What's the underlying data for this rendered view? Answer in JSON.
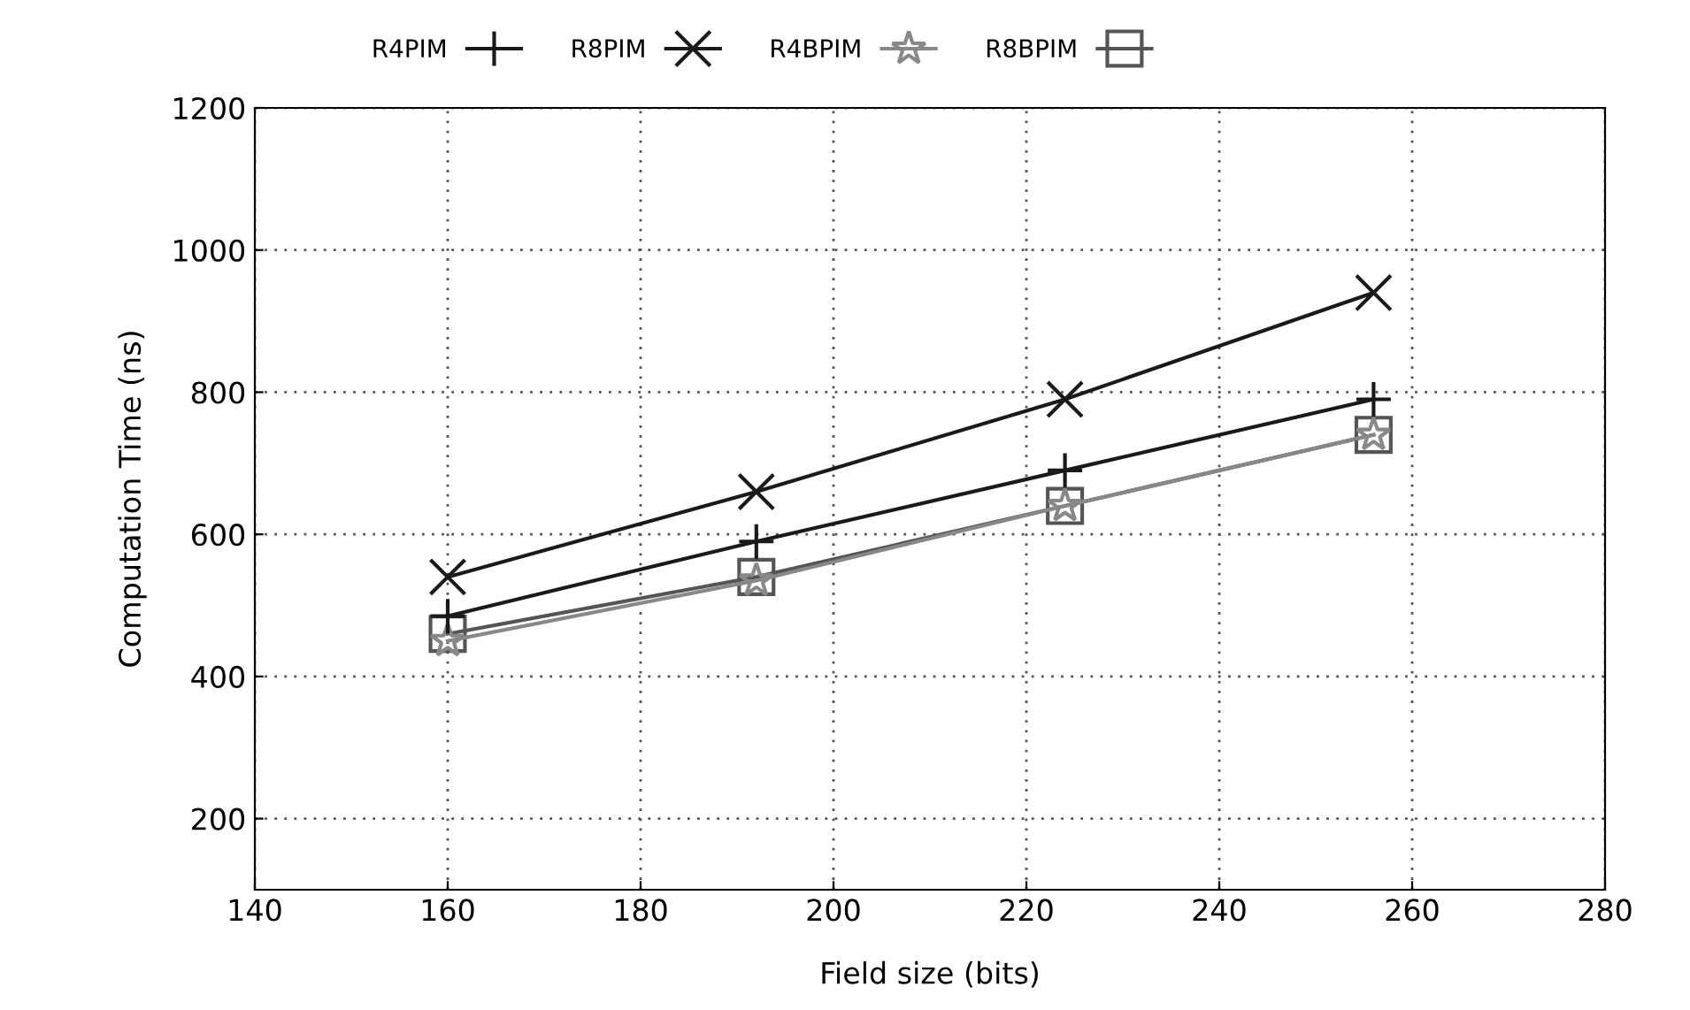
{
  "chart_data": {
    "type": "line",
    "xlabel": "Field size (bits)",
    "ylabel": "Computation Time (ns)",
    "x": [
      160,
      192,
      224,
      256
    ],
    "series": [
      {
        "name": "R4PIM",
        "color": "#1a1a1a",
        "marker": "plus",
        "values": [
          485,
          590,
          690,
          790
        ]
      },
      {
        "name": "R8PIM",
        "color": "#1a1a1a",
        "marker": "cross",
        "values": [
          540,
          660,
          790,
          940
        ]
      },
      {
        "name": "R4BPIM",
        "color": "#888888",
        "marker": "star",
        "values": [
          450,
          535,
          640,
          740
        ]
      },
      {
        "name": "R8BPIM",
        "color": "#555555",
        "marker": "square",
        "values": [
          460,
          540,
          640,
          740
        ]
      }
    ],
    "xlim": [
      140,
      280
    ],
    "xticks": [
      140,
      160,
      180,
      200,
      220,
      240,
      260,
      280
    ],
    "ylim": [
      100,
      1200
    ],
    "yticks": [
      200,
      400,
      600,
      800,
      1000,
      1200
    ],
    "grid": true,
    "legend": "top left",
    "line_style": "solid"
  }
}
